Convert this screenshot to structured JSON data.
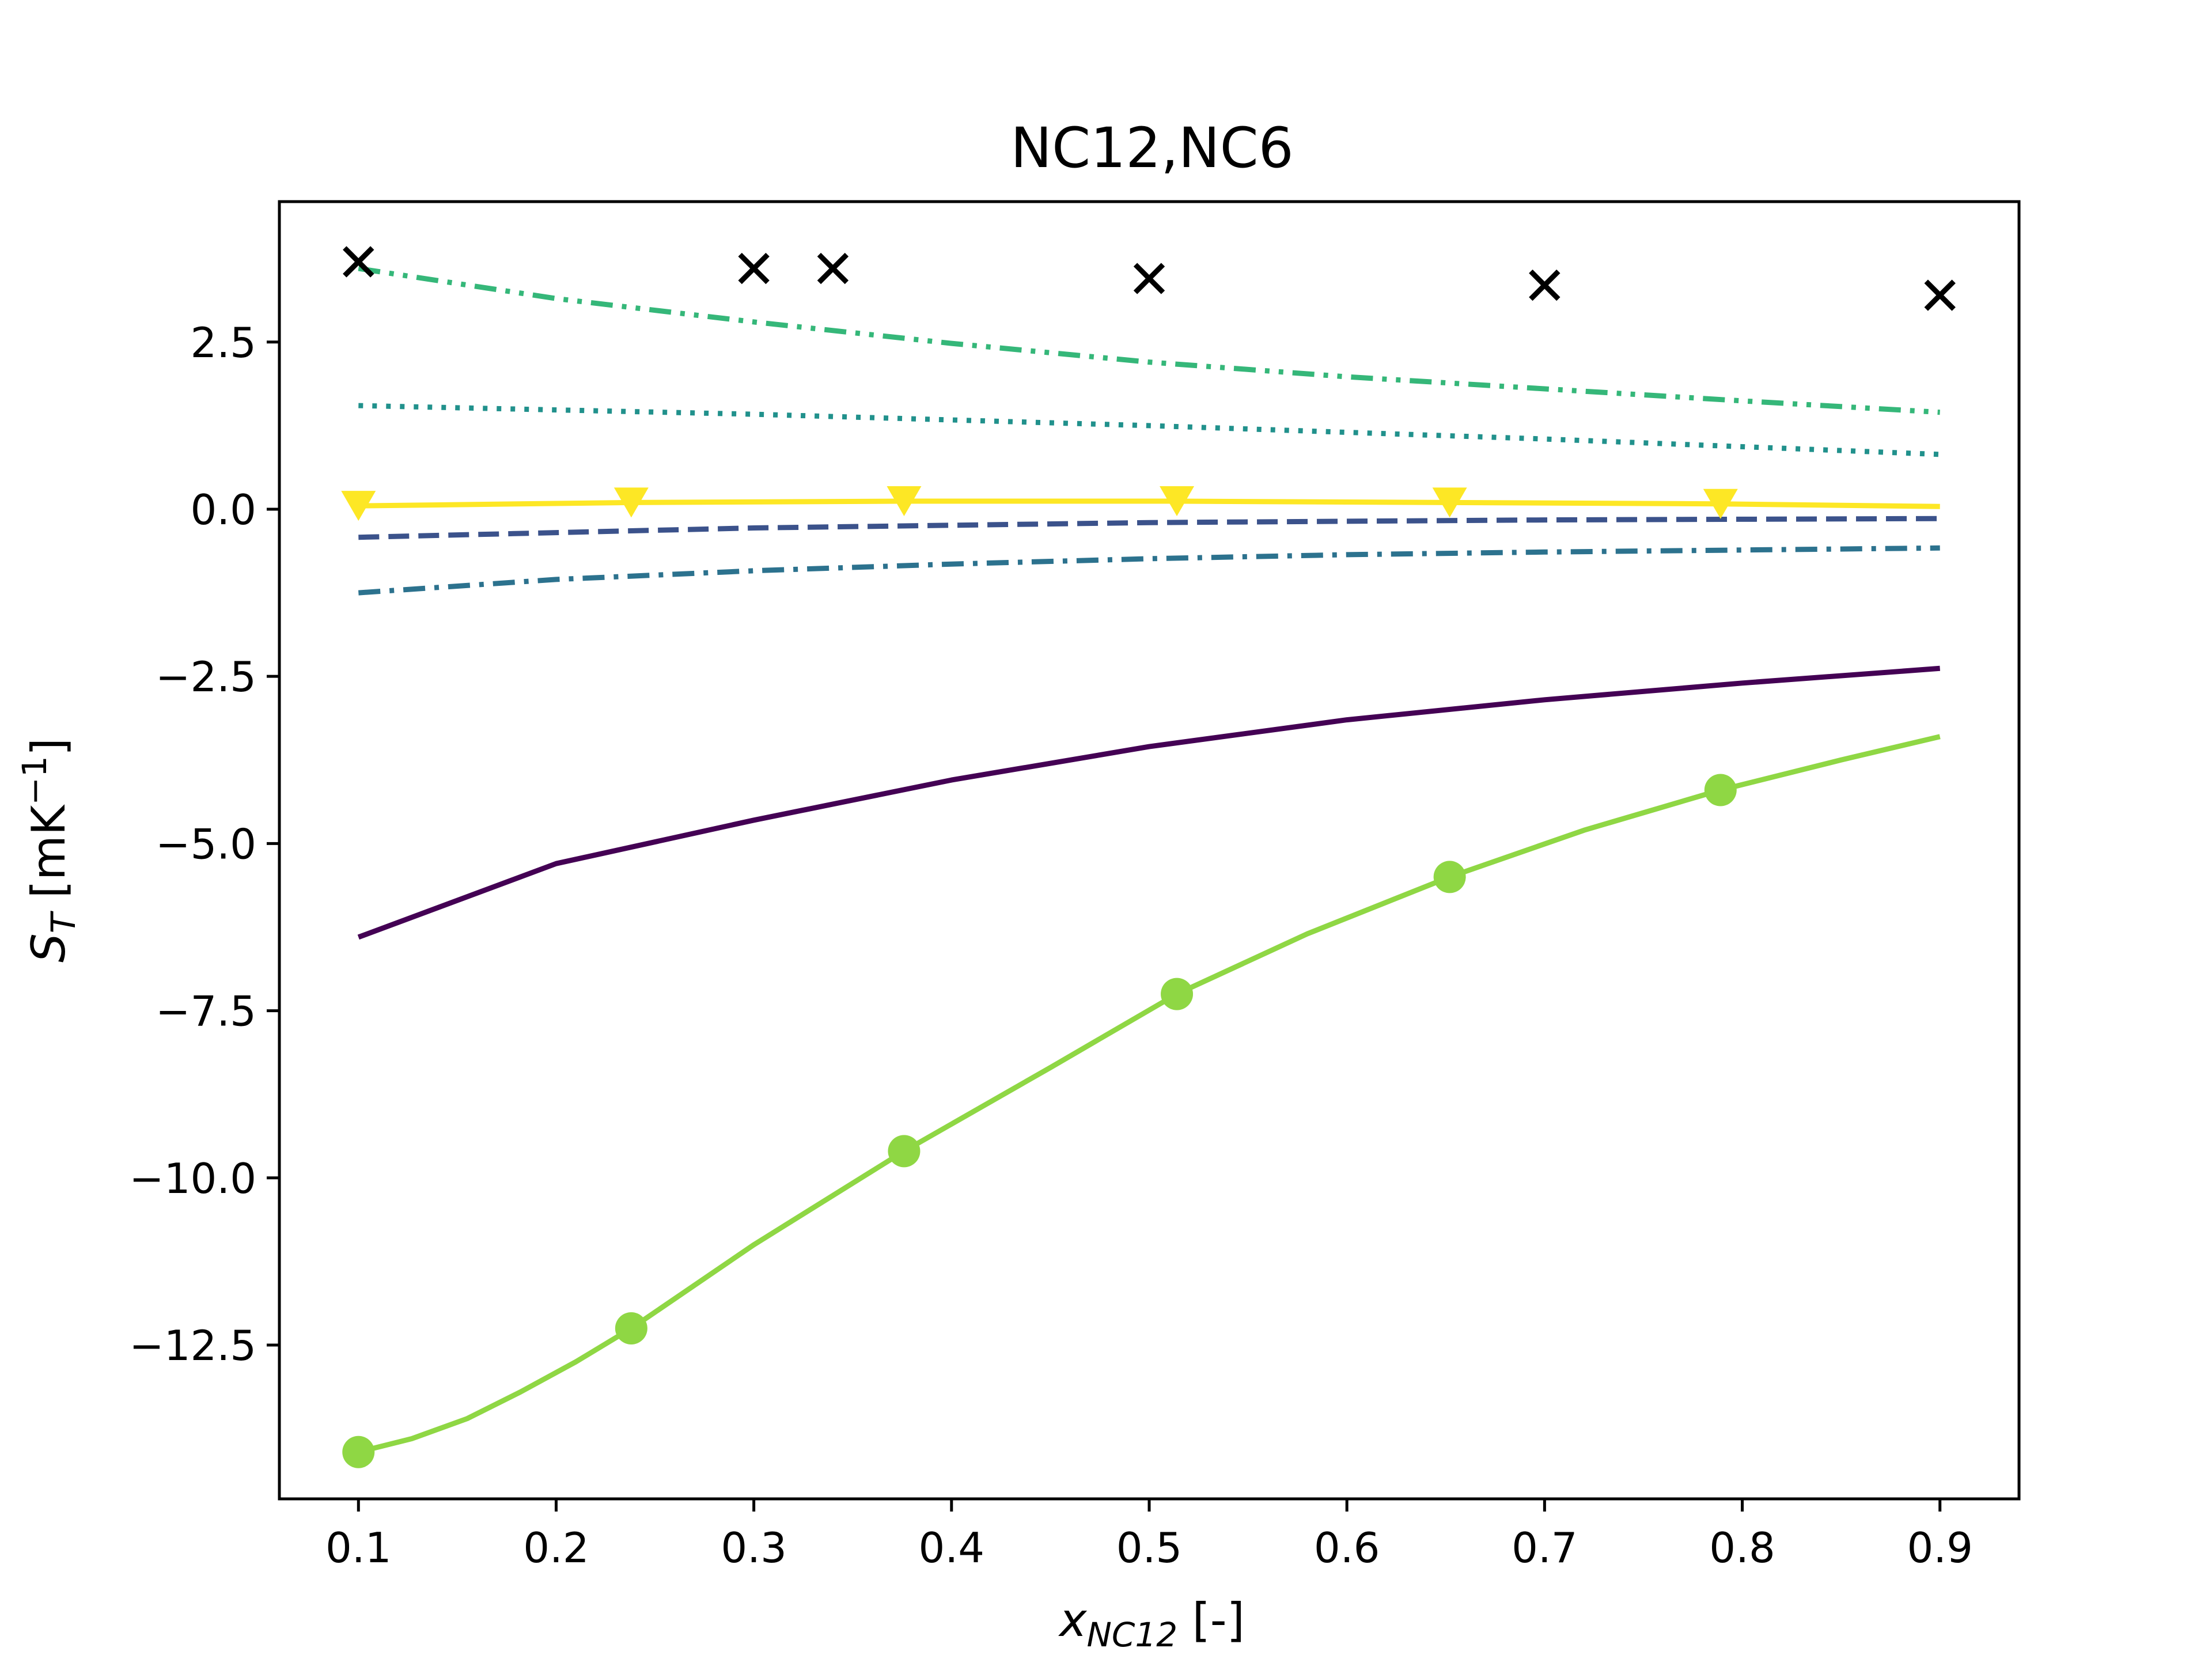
{
  "chart_data": {
    "type": "line",
    "title": "NC12,NC6",
    "xlabel": {
      "main": "x",
      "sub": "NC12",
      "suffix": " [-]"
    },
    "ylabel": {
      "main": "S",
      "sub": "T",
      "unit_pre": " [mK",
      "unit_sup": "−1",
      "unit_post": "]"
    },
    "xlim": [
      0.06,
      0.94
    ],
    "ylim": [
      -14.8,
      4.6
    ],
    "xticks": [
      0.1,
      0.2,
      0.3,
      0.4,
      0.5,
      0.6,
      0.7,
      0.8,
      0.9
    ],
    "xtick_labels": [
      "0.1",
      "0.2",
      "0.3",
      "0.4",
      "0.5",
      "0.6",
      "0.7",
      "0.8",
      "0.9"
    ],
    "yticks": [
      2.5,
      0.0,
      -2.5,
      -5.0,
      -7.5,
      -10.0,
      -12.5
    ],
    "ytick_labels": [
      "2.5",
      "0.0",
      "−2.5",
      "−5.0",
      "−7.5",
      "−10.0",
      "−12.5"
    ],
    "grid": false,
    "legend": "none",
    "series": [
      {
        "style": "solid",
        "color": "#440154",
        "marker": "none",
        "x": [
          0.1,
          0.2,
          0.3,
          0.4,
          0.5,
          0.6,
          0.7,
          0.8,
          0.9
        ],
        "y": [
          -6.4,
          -5.3,
          -4.65,
          -4.05,
          -3.55,
          -3.15,
          -2.85,
          -2.6,
          -2.38
        ]
      },
      {
        "style": "dashed",
        "color": "#3b528b",
        "marker": "none",
        "x": [
          0.1,
          0.3,
          0.5,
          0.7,
          0.9
        ],
        "y": [
          -0.42,
          -0.28,
          -0.2,
          -0.16,
          -0.14
        ]
      },
      {
        "style": "dashdot",
        "color": "#2c728e",
        "marker": "none",
        "x": [
          0.1,
          0.2,
          0.3,
          0.4,
          0.5,
          0.6,
          0.7,
          0.8,
          0.9
        ],
        "y": [
          -1.25,
          -1.05,
          -0.92,
          -0.82,
          -0.74,
          -0.68,
          -0.64,
          -0.61,
          -0.58
        ]
      },
      {
        "style": "dotted",
        "color": "#21918c",
        "marker": "none",
        "x": [
          0.1,
          0.3,
          0.5,
          0.7,
          0.9
        ],
        "y": [
          1.55,
          1.42,
          1.25,
          1.05,
          0.82
        ]
      },
      {
        "style": "dashdotdot",
        "color": "#35b779",
        "marker": "none",
        "x": [
          0.1,
          0.2,
          0.3,
          0.4,
          0.5,
          0.6,
          0.7,
          0.8,
          0.9
        ],
        "y": [
          3.6,
          3.15,
          2.8,
          2.48,
          2.2,
          1.98,
          1.8,
          1.62,
          1.45
        ]
      },
      {
        "style": "solid",
        "color": "#8fd744",
        "marker": "circle",
        "x": [
          0.1,
          0.127,
          0.155,
          0.182,
          0.21,
          0.238,
          0.3,
          0.376,
          0.45,
          0.514,
          0.58,
          0.652,
          0.72,
          0.789,
          0.85,
          0.9
        ],
        "y": [
          -14.1,
          -13.9,
          -13.6,
          -13.2,
          -12.75,
          -12.25,
          -11.0,
          -9.6,
          -8.35,
          -7.25,
          -6.35,
          -5.5,
          -4.8,
          -4.2,
          -3.75,
          -3.4
        ],
        "marker_x": [
          0.1,
          0.238,
          0.376,
          0.514,
          0.652,
          0.789
        ],
        "marker_y": [
          -14.1,
          -12.25,
          -9.6,
          -7.25,
          -5.5,
          -4.2
        ]
      },
      {
        "style": "solid",
        "color": "#fde725",
        "marker": "triangle-down",
        "x": [
          0.1,
          0.238,
          0.376,
          0.514,
          0.652,
          0.789,
          0.9
        ],
        "y": [
          0.05,
          0.1,
          0.12,
          0.12,
          0.1,
          0.08,
          0.04
        ],
        "marker_x": [
          0.1,
          0.238,
          0.376,
          0.514,
          0.652,
          0.789
        ],
        "marker_y": [
          0.05,
          0.1,
          0.12,
          0.12,
          0.1,
          0.08
        ]
      },
      {
        "style": "none",
        "color": "#000000",
        "marker": "x",
        "x": [
          0.1,
          0.3,
          0.34,
          0.5,
          0.7,
          0.9
        ],
        "y": [
          3.7,
          3.6,
          3.6,
          3.45,
          3.35,
          3.2
        ]
      }
    ]
  }
}
